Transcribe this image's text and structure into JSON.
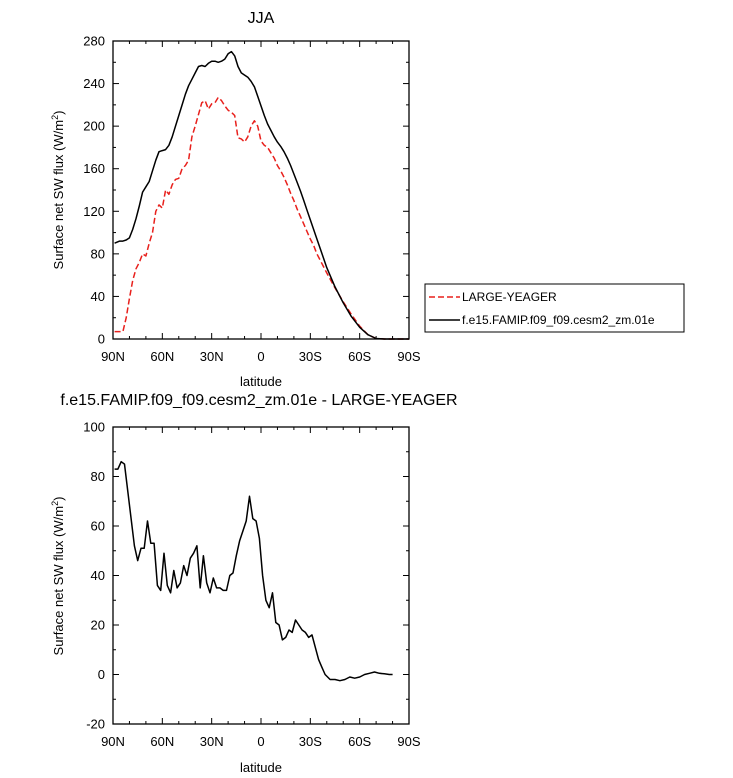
{
  "chart_data": [
    {
      "type": "line",
      "title": "JJA",
      "xlabel": "latitude",
      "ylabel": "Surface net SW flux (W/m",
      "ylabel_sup": "2",
      "ylabel_close": ")",
      "xlim": [
        90,
        -90
      ],
      "ylim": [
        0,
        280
      ],
      "x_ticks": [
        90,
        60,
        30,
        0,
        -30,
        -60,
        -90
      ],
      "x_tick_labels": [
        "90N",
        "60N",
        "30N",
        "0",
        "30S",
        "60S",
        "90S"
      ],
      "y_ticks": [
        0,
        40,
        80,
        120,
        160,
        200,
        240,
        280
      ],
      "grid": false,
      "legend": "right",
      "series": [
        {
          "name": "LARGE-YEAGER",
          "style": "dashed",
          "color": "#e8201c",
          "x": [
            89,
            86,
            84,
            82,
            80,
            78,
            76,
            74,
            72,
            70,
            68,
            66,
            64,
            62,
            60,
            58,
            56,
            54,
            52,
            50,
            48,
            46,
            44,
            42,
            40,
            38,
            36,
            34,
            32,
            30,
            28,
            26,
            24,
            22,
            20,
            18,
            16,
            14,
            12,
            10,
            8,
            6,
            4,
            2,
            0,
            -2,
            -4,
            -6,
            -8,
            -10,
            -12,
            -14,
            -16,
            -18,
            -20,
            -22,
            -24,
            -26,
            -28,
            -30,
            -32,
            -34,
            -36,
            -38,
            -40,
            -45,
            -50,
            -55,
            -60,
            -65,
            -70,
            -75,
            -80,
            -85,
            -90
          ],
          "y": [
            7,
            7,
            7,
            20,
            38,
            55,
            66,
            72,
            80,
            78,
            90,
            100,
            120,
            126,
            123,
            140,
            136,
            145,
            150,
            151,
            160,
            163,
            168,
            190,
            200,
            211,
            222,
            224,
            216,
            221,
            222,
            227,
            224,
            219,
            215,
            213,
            210,
            189,
            188,
            185,
            190,
            200,
            205,
            200,
            186,
            182,
            180,
            175,
            170,
            163,
            158,
            152,
            145,
            137,
            130,
            122,
            115,
            108,
            101,
            94,
            88,
            80,
            74,
            68,
            62,
            48,
            35,
            23,
            12,
            4,
            0.5,
            0,
            0,
            0,
            0
          ]
        },
        {
          "name": "f.e15.FAMIP.f09_f09.cesm2_zm.01e",
          "style": "solid",
          "color": "#000000",
          "x": [
            89,
            86,
            84,
            82,
            80,
            78,
            76,
            74,
            72,
            70,
            68,
            66,
            64,
            62,
            60,
            58,
            56,
            54,
            52,
            50,
            48,
            46,
            44,
            42,
            40,
            38,
            36,
            34,
            32,
            30,
            28,
            26,
            24,
            22,
            20,
            18,
            16,
            14,
            12,
            10,
            8,
            6,
            4,
            2,
            0,
            -2,
            -4,
            -6,
            -8,
            -10,
            -12,
            -14,
            -16,
            -18,
            -20,
            -22,
            -24,
            -26,
            -28,
            -30,
            -32,
            -34,
            -36,
            -38,
            -40,
            -45,
            -50,
            -55,
            -60,
            -65,
            -70,
            -75,
            -80,
            -85,
            -90
          ],
          "y": [
            90,
            92,
            92,
            93,
            95,
            103,
            113,
            125,
            138,
            143,
            148,
            158,
            168,
            176,
            177,
            178,
            182,
            190,
            200,
            210,
            220,
            230,
            238,
            244,
            250,
            256,
            257,
            256,
            259,
            261,
            261,
            260,
            261,
            263,
            268,
            270,
            266,
            256,
            250,
            248,
            246,
            242,
            237,
            228,
            219,
            210,
            202,
            196,
            190,
            185,
            181,
            176,
            170,
            163,
            155,
            147,
            139,
            130,
            121,
            112,
            103,
            94,
            85,
            76,
            67,
            49,
            34,
            21,
            11,
            4,
            0.5,
            0,
            0,
            0,
            0
          ]
        }
      ]
    },
    {
      "type": "line",
      "title": "f.e15.FAMIP.f09_f09.cesm2_zm.01e - LARGE-YEAGER",
      "xlabel": "latitude",
      "ylabel": "Surface net SW flux (W/m",
      "ylabel_sup": "2",
      "ylabel_close": ")",
      "xlim": [
        90,
        -90
      ],
      "ylim": [
        -20,
        100
      ],
      "x_ticks": [
        90,
        60,
        30,
        0,
        -30,
        -60,
        -90
      ],
      "x_tick_labels": [
        "90N",
        "60N",
        "30N",
        "0",
        "30S",
        "60S",
        "90S"
      ],
      "y_ticks": [
        -20,
        0,
        20,
        40,
        60,
        80,
        100
      ],
      "grid": false,
      "series": [
        {
          "style": "solid",
          "color": "#000000",
          "x": [
            89,
            87,
            85,
            83,
            81,
            79,
            77,
            75,
            73,
            71,
            69,
            67,
            65,
            63,
            61,
            59,
            57,
            55,
            53,
            51,
            49,
            47,
            45,
            43,
            41,
            39,
            37,
            35,
            33,
            31,
            29,
            27,
            25,
            23,
            21,
            19,
            17,
            15,
            13,
            11,
            9,
            7,
            5,
            3,
            1,
            -1,
            -3,
            -5,
            -7,
            -9,
            -11,
            -13,
            -15,
            -17,
            -19,
            -21,
            -23,
            -25,
            -27,
            -29,
            -31,
            -33,
            -35,
            -37,
            -39,
            -42,
            -45,
            -48,
            -51,
            -54,
            -57,
            -60,
            -63,
            -66,
            -69,
            -72,
            -75,
            -78,
            -80
          ],
          "y": [
            83,
            83,
            86,
            85,
            74,
            63,
            52,
            46,
            51,
            51,
            62,
            53,
            53,
            36,
            34,
            49,
            36,
            33,
            42,
            35,
            37,
            44,
            40,
            47,
            49,
            52,
            35,
            48,
            37,
            33,
            39,
            35,
            35,
            34,
            34,
            40,
            41,
            48,
            54,
            58,
            62,
            72,
            63,
            62,
            55,
            40,
            30,
            27,
            33,
            21,
            20,
            14,
            15,
            18,
            17,
            22,
            20,
            18,
            17,
            15,
            16,
            11,
            6,
            3,
            0,
            -2,
            -2,
            -2.5,
            -2,
            -1,
            -1.5,
            -1,
            0,
            0.5,
            1,
            0.5,
            0.3,
            0,
            0
          ]
        }
      ]
    }
  ]
}
